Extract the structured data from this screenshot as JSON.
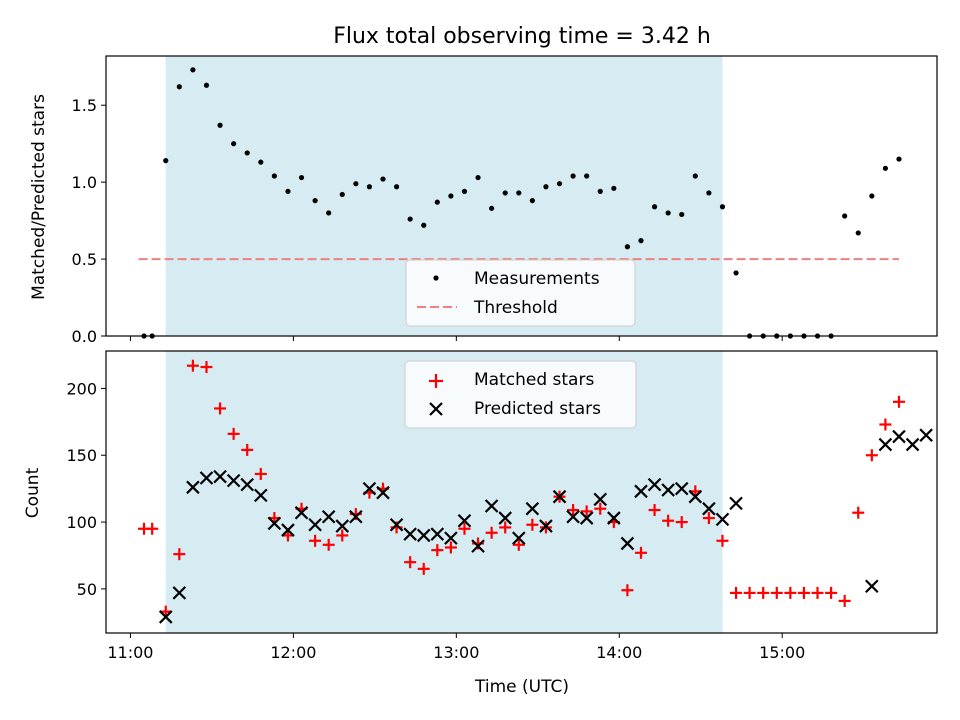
{
  "chart_data": [
    {
      "type": "scatter",
      "title": "Flux total observing time = 3.42 h",
      "ylabel": "Matched/Predicted stars",
      "ylim": [
        0,
        1.82
      ],
      "yticks": [
        0.0,
        0.5,
        1.0,
        1.5
      ],
      "ytick_labels": [
        "0.0",
        "0.5",
        "1.0",
        "1.5"
      ],
      "shaded_span": {
        "start": "11:13",
        "end": "14:38",
        "color": "#add8e6"
      },
      "legend_position": "lower-center",
      "series": [
        {
          "name": "Measurements",
          "marker": "dot",
          "color": "#000000",
          "x": [
            "11:05",
            "11:08",
            "11:13",
            "11:18",
            "11:23",
            "11:28",
            "11:33",
            "11:38",
            "11:43",
            "11:48",
            "11:53",
            "11:58",
            "12:03",
            "12:08",
            "12:13",
            "12:18",
            "12:23",
            "12:28",
            "12:33",
            "12:38",
            "12:43",
            "12:48",
            "12:53",
            "12:58",
            "13:03",
            "13:08",
            "13:13",
            "13:18",
            "13:23",
            "13:28",
            "13:33",
            "13:38",
            "13:43",
            "13:48",
            "13:53",
            "13:58",
            "14:03",
            "14:08",
            "14:13",
            "14:18",
            "14:23",
            "14:28",
            "14:33",
            "14:38",
            "14:43",
            "14:48",
            "14:53",
            "14:58",
            "15:03",
            "15:08",
            "15:13",
            "15:18",
            "15:23",
            "15:28",
            "15:33",
            "15:38",
            "15:43"
          ],
          "y": [
            0.0,
            0.0,
            1.14,
            1.62,
            1.73,
            1.63,
            1.37,
            1.25,
            1.19,
            1.13,
            1.04,
            0.94,
            1.03,
            0.88,
            0.8,
            0.92,
            0.99,
            0.97,
            1.02,
            0.97,
            0.76,
            0.72,
            0.87,
            0.91,
            0.94,
            1.03,
            0.83,
            0.93,
            0.93,
            0.88,
            0.97,
            0.99,
            1.04,
            1.04,
            0.94,
            0.96,
            0.58,
            0.62,
            0.84,
            0.8,
            0.79,
            1.04,
            0.93,
            0.84,
            0.41,
            0.0,
            0.0,
            0.0,
            0.0,
            0.0,
            0.0,
            0.0,
            0.78,
            0.67,
            0.91,
            1.09,
            1.15
          ]
        },
        {
          "name": "Threshold",
          "type": "line",
          "style": "dashed",
          "color": "#f08080",
          "x": [
            "11:03",
            "15:43"
          ],
          "y": [
            0.5,
            0.5
          ]
        }
      ]
    },
    {
      "type": "scatter",
      "xlabel": "Time (UTC)",
      "ylabel": "Count",
      "ylim": [
        17,
        228
      ],
      "yticks": [
        50,
        100,
        150,
        200
      ],
      "ytick_labels": [
        "50",
        "100",
        "150",
        "200"
      ],
      "xlim": [
        "10:51",
        "15:57"
      ],
      "xticks": [
        "11:00",
        "12:00",
        "13:00",
        "14:00",
        "15:00"
      ],
      "xtick_labels": [
        "11:00",
        "12:00",
        "13:00",
        "14:00",
        "15:00"
      ],
      "shaded_span": {
        "start": "11:13",
        "end": "14:38",
        "color": "#add8e6"
      },
      "legend_position": "top-center",
      "series": [
        {
          "name": "Matched stars",
          "marker": "plus",
          "color": "#ff0000",
          "x": [
            "11:05",
            "11:08",
            "11:13",
            "11:18",
            "11:23",
            "11:28",
            "11:33",
            "11:38",
            "11:43",
            "11:48",
            "11:53",
            "11:58",
            "12:03",
            "12:08",
            "12:13",
            "12:18",
            "12:23",
            "12:28",
            "12:33",
            "12:38",
            "12:43",
            "12:48",
            "12:53",
            "12:58",
            "13:03",
            "13:08",
            "13:13",
            "13:18",
            "13:23",
            "13:28",
            "13:33",
            "13:38",
            "13:43",
            "13:48",
            "13:53",
            "13:58",
            "14:03",
            "14:08",
            "14:13",
            "14:18",
            "14:23",
            "14:28",
            "14:33",
            "14:38",
            "14:43",
            "14:48",
            "14:53",
            "14:58",
            "15:03",
            "15:08",
            "15:13",
            "15:18",
            "15:23",
            "15:28",
            "15:33",
            "15:38",
            "15:43"
          ],
          "y": [
            95,
            95,
            33,
            76,
            217,
            216,
            185,
            166,
            154,
            136,
            103,
            90,
            110,
            86,
            83,
            90,
            106,
            122,
            125,
            96,
            70,
            65,
            79,
            81,
            95,
            84,
            92,
            96,
            83,
            98,
            96,
            119,
            109,
            108,
            110,
            100,
            49,
            77,
            109,
            101,
            100,
            123,
            103,
            86,
            47,
            47,
            47,
            47,
            47,
            47,
            47,
            47,
            41,
            107,
            150,
            173,
            190
          ]
        },
        {
          "name": "Predicted stars",
          "marker": "x",
          "color": "#000000",
          "x": [
            "11:13",
            "11:18",
            "11:23",
            "11:28",
            "11:33",
            "11:38",
            "11:43",
            "11:48",
            "11:53",
            "11:58",
            "12:03",
            "12:08",
            "12:13",
            "12:18",
            "12:23",
            "12:28",
            "12:33",
            "12:38",
            "12:43",
            "12:48",
            "12:53",
            "12:58",
            "13:03",
            "13:08",
            "13:13",
            "13:18",
            "13:23",
            "13:28",
            "13:33",
            "13:38",
            "13:43",
            "13:48",
            "13:53",
            "13:58",
            "14:03",
            "14:08",
            "14:13",
            "14:18",
            "14:23",
            "14:28",
            "14:33",
            "14:38",
            "14:43",
            "15:33",
            "15:38",
            "15:43",
            "15:48",
            "15:53"
          ],
          "y": [
            29,
            47,
            126,
            133,
            134,
            131,
            128,
            120,
            99,
            94,
            107,
            98,
            104,
            97,
            104,
            125,
            122,
            98,
            91,
            90,
            91,
            88,
            101,
            82,
            112,
            103,
            88,
            110,
            97,
            119,
            104,
            103,
            117,
            103,
            84,
            123,
            128,
            124,
            125,
            119,
            110,
            102,
            114,
            52,
            158,
            164,
            158,
            165
          ]
        }
      ]
    }
  ]
}
